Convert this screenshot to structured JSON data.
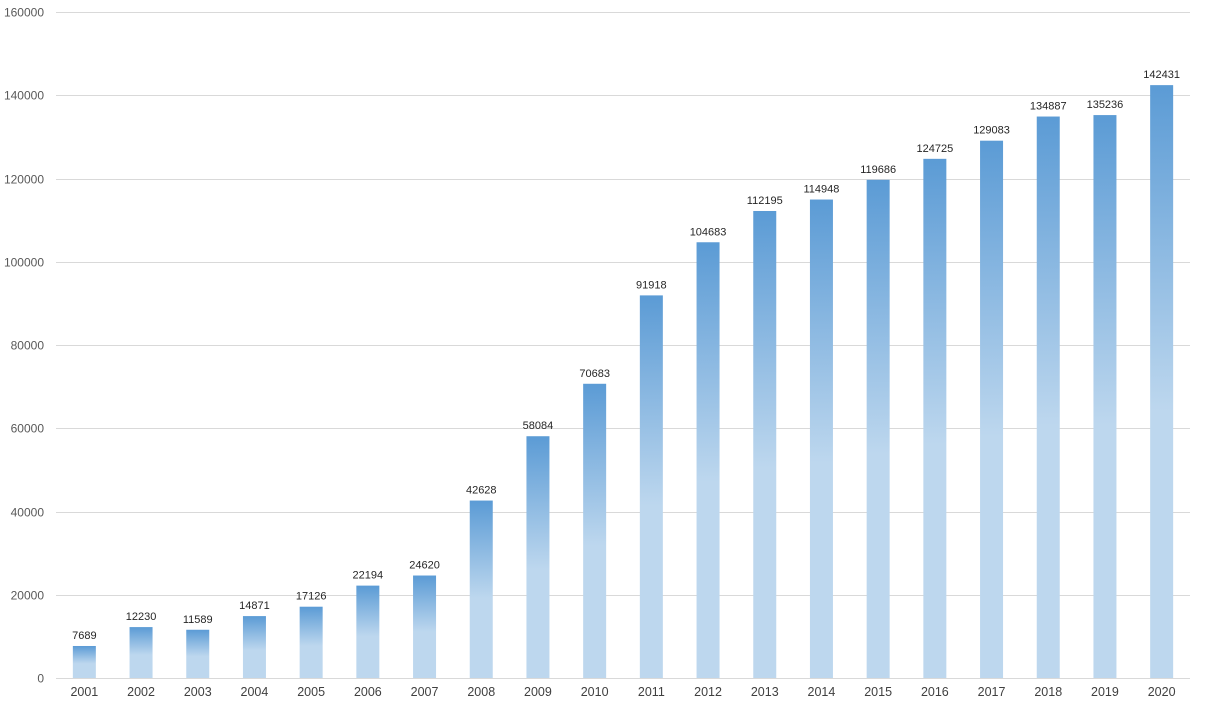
{
  "chart_data": {
    "type": "bar",
    "categories": [
      "2001",
      "2002",
      "2003",
      "2004",
      "2005",
      "2006",
      "2007",
      "2008",
      "2009",
      "2010",
      "2011",
      "2012",
      "2013",
      "2014",
      "2015",
      "2016",
      "2017",
      "2018",
      "2019",
      "2020"
    ],
    "values": [
      7689,
      12230,
      11589,
      14871,
      17126,
      22194,
      24620,
      42628,
      58084,
      70683,
      91918,
      104683,
      112195,
      114948,
      119686,
      124725,
      129083,
      134887,
      135236,
      142431
    ],
    "ylim": [
      0,
      160000
    ],
    "yticks": [
      0,
      20000,
      40000,
      60000,
      80000,
      100000,
      120000,
      140000,
      160000
    ],
    "grid": true,
    "data_labels": true,
    "title": "",
    "xlabel": "",
    "ylabel": ""
  },
  "colors": {
    "bar_top": "#5b9bd5",
    "bar_bottom": "#bdd7ee",
    "grid": "#d9d9d9"
  }
}
